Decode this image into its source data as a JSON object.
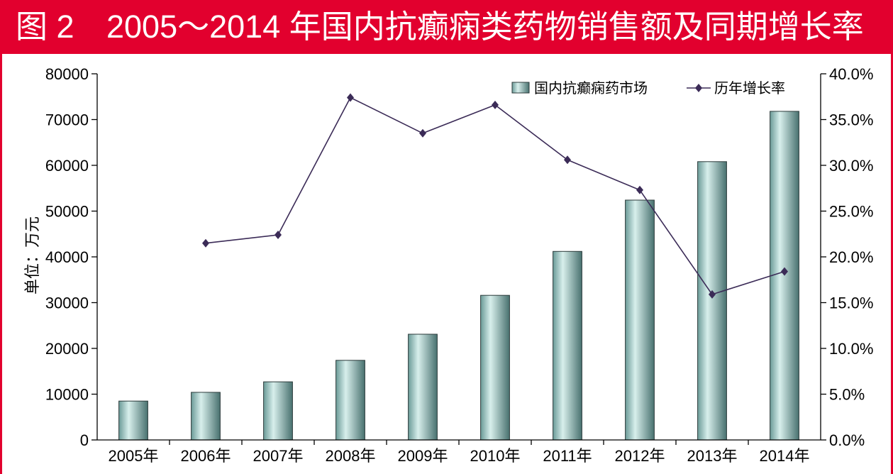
{
  "chart_data": {
    "type": "bar",
    "figure_label": "图 2",
    "title": "2005～2014 年国内抗癫痫类药物销售额及同期增长率",
    "categories": [
      "2005年",
      "2006年",
      "2007年",
      "2008年",
      "2009年",
      "2010年",
      "2011年",
      "2012年",
      "2013年",
      "2014年"
    ],
    "ylabel": "单位：万元",
    "ylim": [
      0,
      80000
    ],
    "yticks": [
      "0",
      "10000",
      "20000",
      "30000",
      "40000",
      "50000",
      "60000",
      "70000",
      "80000"
    ],
    "y2lim": [
      0,
      40
    ],
    "y2ticks": [
      "0.0%",
      "5.0%",
      "10.0%",
      "15.0%",
      "20.0%",
      "25.0%",
      "30.0%",
      "35.0%",
      "40.0%"
    ],
    "series": [
      {
        "name": "国内抗癫痫药市场",
        "type": "bar",
        "axis": "left",
        "values": [
          8500,
          10400,
          12700,
          17400,
          23100,
          31600,
          41200,
          52400,
          60800,
          71800
        ]
      },
      {
        "name": "历年增长率",
        "type": "line",
        "axis": "right",
        "marker": "diamond",
        "values": [
          null,
          21.5,
          22.4,
          37.4,
          33.5,
          36.6,
          30.6,
          27.3,
          15.9,
          18.4
        ]
      }
    ],
    "grid": false,
    "legend": {
      "position": "top-right"
    },
    "colors": {
      "title_bar": "#E2002E",
      "bar_edge": "#6a9a97",
      "bar_highlight": "#d8efec",
      "bar_shadow": "#48716f",
      "bar_outline": "#2b3a3a",
      "line": "#3b2b57",
      "axis": "#000000"
    }
  }
}
